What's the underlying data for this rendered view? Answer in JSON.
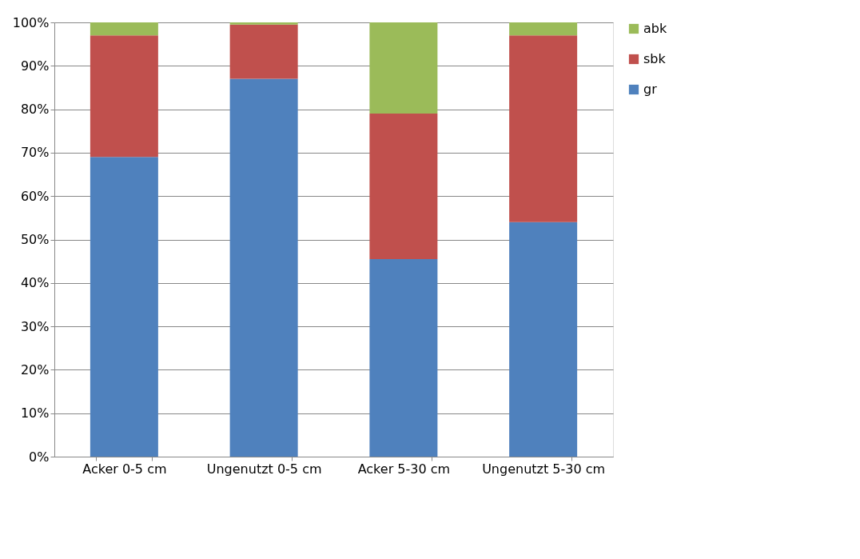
{
  "chart_data": {
    "type": "bar",
    "stacked": true,
    "categories": [
      "Acker 0-5 cm",
      "Ungenutzt 0-5 cm",
      "Acker 5-30 cm",
      "Ungenutzt 5-30 cm"
    ],
    "series": [
      {
        "name": "gr",
        "color": "#4f81bd",
        "values": [
          69,
          87,
          45.5,
          54
        ]
      },
      {
        "name": "sbk",
        "color": "#c0504d",
        "values": [
          28,
          12.5,
          33.5,
          43
        ]
      },
      {
        "name": "abk",
        "color": "#9bbb59",
        "values": [
          3,
          0.5,
          21,
          3
        ]
      }
    ],
    "ylim": [
      0,
      100
    ],
    "yticks": [
      {
        "value": 0,
        "label": "0%"
      },
      {
        "value": 10,
        "label": "10%"
      },
      {
        "value": 20,
        "label": "20%"
      },
      {
        "value": 30,
        "label": "30%"
      },
      {
        "value": 40,
        "label": "40%"
      },
      {
        "value": 50,
        "label": "50%"
      },
      {
        "value": 60,
        "label": "60%"
      },
      {
        "value": 70,
        "label": "70%"
      },
      {
        "value": 80,
        "label": "80%"
      },
      {
        "value": 90,
        "label": "90%"
      },
      {
        "value": 100,
        "label": "100%"
      }
    ],
    "grid": "y",
    "legend": "right"
  }
}
